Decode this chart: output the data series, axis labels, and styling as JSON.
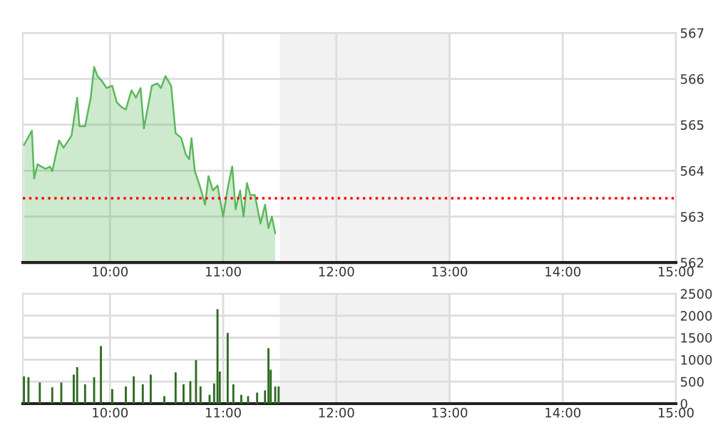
{
  "chart_data": [
    {
      "type": "area",
      "x": [
        9.24,
        9.31,
        9.33,
        9.36,
        9.43,
        9.47,
        9.49,
        9.55,
        9.59,
        9.66,
        9.71,
        9.73,
        9.78,
        9.83,
        9.86,
        9.89,
        9.93,
        9.97,
        10.02,
        10.06,
        10.1,
        10.14,
        10.19,
        10.23,
        10.27,
        10.3,
        10.37,
        10.42,
        10.45,
        10.49,
        10.54,
        10.58,
        10.63,
        10.67,
        10.7,
        10.72,
        10.75,
        10.8,
        10.84,
        10.87,
        10.91,
        10.95,
        11.0,
        11.04,
        11.08,
        11.11,
        11.15,
        11.18,
        11.21,
        11.24,
        11.28,
        11.33,
        11.37,
        11.4,
        11.43,
        11.46
      ],
      "series": [
        {
          "color": "#5cb85c",
          "values": [
            564.56,
            564.87,
            563.83,
            564.14,
            564.04,
            564.09,
            563.99,
            564.66,
            564.5,
            564.76,
            565.59,
            564.97,
            564.97,
            565.59,
            566.26,
            566.06,
            565.95,
            565.8,
            565.85,
            565.49,
            565.39,
            565.33,
            565.75,
            565.59,
            565.8,
            564.92,
            565.85,
            565.9,
            565.8,
            566.06,
            565.85,
            564.82,
            564.71,
            564.35,
            564.25,
            564.71,
            563.99,
            563.62,
            563.26,
            563.88,
            563.57,
            563.68,
            563.0,
            563.62,
            564.09,
            563.16,
            563.57,
            563.0,
            563.73,
            563.47,
            563.47,
            562.85,
            563.26,
            562.75,
            563.0,
            562.64
          ]
        }
      ],
      "xlim": [
        9.23,
        15
      ],
      "xticks": [
        {
          "value": 10,
          "label": "10:00"
        },
        {
          "value": 11,
          "label": "11:00"
        },
        {
          "value": 12,
          "label": "12:00"
        },
        {
          "value": 13,
          "label": "13:00"
        },
        {
          "value": 14,
          "label": "14:00"
        },
        {
          "value": 15,
          "label": "15:00"
        }
      ],
      "ylim": [
        562,
        567
      ],
      "yticks": [
        562,
        563,
        564,
        565,
        566,
        567
      ],
      "grid": true,
      "ref_lines": [
        {
          "axis": "y",
          "value": 563.4,
          "color": "#ff0000",
          "line_style": "dotted"
        }
      ],
      "bands": [
        {
          "axis": "x",
          "from": 11.5,
          "to": 13,
          "color": "#f2f2f2"
        }
      ]
    },
    {
      "type": "bar",
      "x": [
        9.24,
        9.28,
        9.38,
        9.49,
        9.57,
        9.68,
        9.71,
        9.78,
        9.86,
        9.92,
        10.02,
        10.14,
        10.21,
        10.29,
        10.36,
        10.48,
        10.58,
        10.65,
        10.71,
        10.76,
        10.8,
        10.88,
        10.92,
        10.95,
        10.97,
        11.04,
        11.09,
        11.16,
        11.22,
        11.3,
        11.37,
        11.4,
        11.42,
        11.46,
        11.49
      ],
      "series": [
        {
          "color": "#2f6b22",
          "values": [
            620,
            600,
            480,
            370,
            480,
            660,
            830,
            440,
            600,
            1310,
            330,
            390,
            620,
            440,
            660,
            170,
            710,
            440,
            510,
            990,
            390,
            200,
            460,
            2150,
            730,
            1610,
            440,
            200,
            170,
            250,
            300,
            1260,
            770,
            390,
            390
          ]
        }
      ],
      "xlim": [
        9.23,
        15
      ],
      "xticks": [
        {
          "value": 10,
          "label": "10:00"
        },
        {
          "value": 11,
          "label": "11:00"
        },
        {
          "value": 12,
          "label": "12:00"
        },
        {
          "value": 13,
          "label": "13:00"
        },
        {
          "value": 14,
          "label": "14:00"
        },
        {
          "value": 15,
          "label": "15:00"
        }
      ],
      "ylim": [
        0,
        2500
      ],
      "yticks": [
        0,
        500,
        1000,
        1500,
        2000,
        2500
      ],
      "grid": true,
      "bands": [
        {
          "axis": "x",
          "from": 11.5,
          "to": 13,
          "color": "#f2f2f2"
        }
      ]
    }
  ]
}
